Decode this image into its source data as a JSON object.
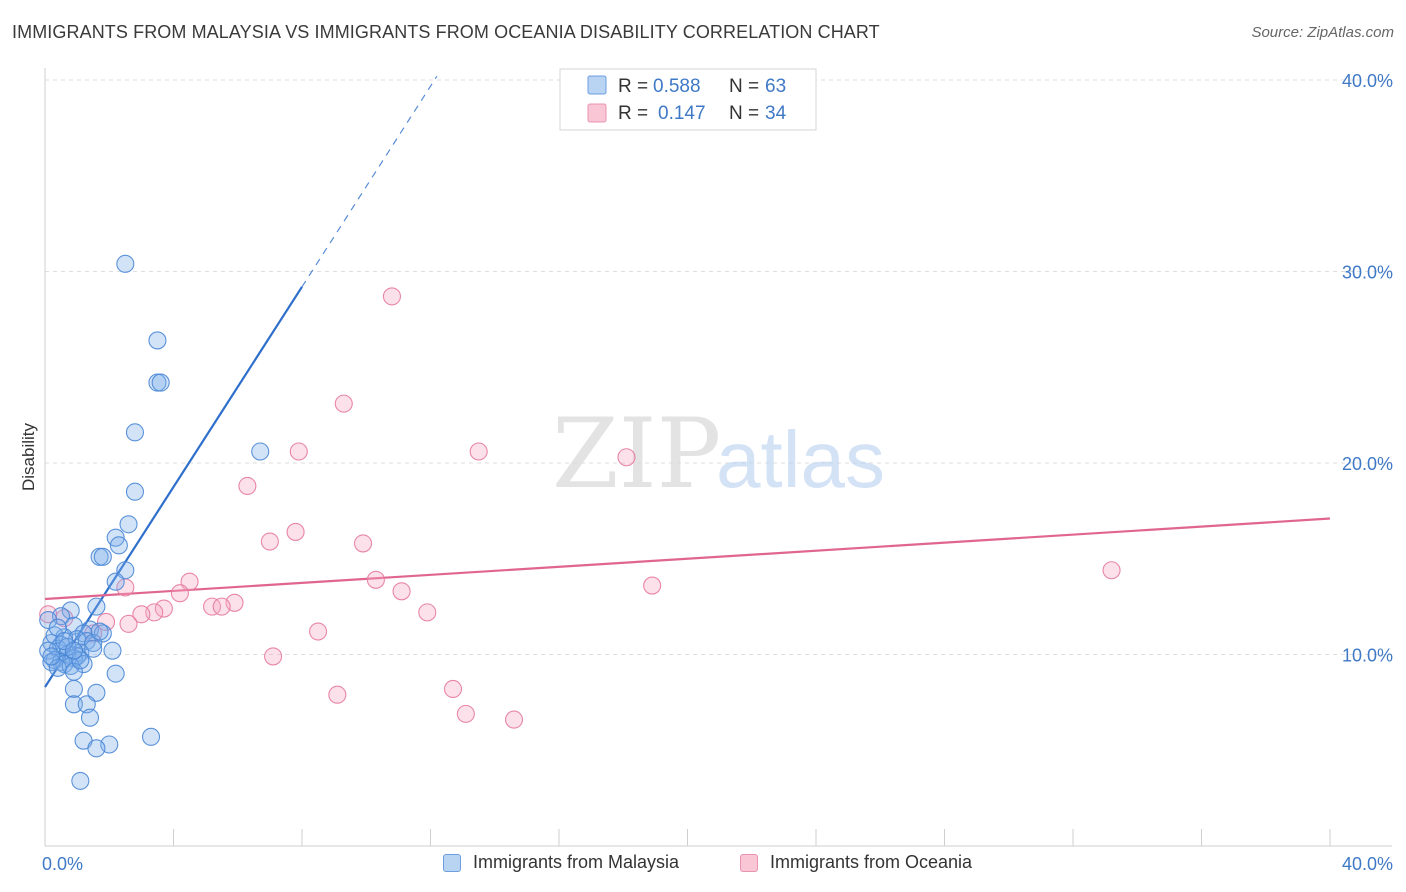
{
  "chart_data": {
    "type": "scatter",
    "title": "IMMIGRANTS FROM MALAYSIA VS IMMIGRANTS FROM OCEANIA DISABILITY CORRELATION CHART",
    "source": "Source: ZipAtlas.com",
    "ylabel": "Disability",
    "xlim": [
      0,
      40
    ],
    "ylim": [
      0,
      40
    ],
    "y_ticks": [
      {
        "value": 10,
        "label": "10.0%"
      },
      {
        "value": 20,
        "label": "20.0%"
      },
      {
        "value": 30,
        "label": "30.0%"
      },
      {
        "value": 40,
        "label": "40.0%"
      }
    ],
    "x_ticks": [
      {
        "value": 0,
        "label": "0.0%"
      },
      {
        "value": 40,
        "label": "40.0%"
      }
    ],
    "legend_stats": [
      {
        "r_label": "R =",
        "r_value": "0.588",
        "n_label": "N =",
        "n_value": "63"
      },
      {
        "r_label": "R =",
        "r_value": "0.147",
        "n_label": "N =",
        "n_value": "34"
      }
    ],
    "watermark": {
      "part1": "ZIP",
      "part2": "atlas"
    },
    "series": [
      {
        "name": "Immigrants from Malaysia",
        "color": "#7fb0ea",
        "stroke": "#4a87d6",
        "trend_color": "#2e6fcc",
        "trend": {
          "x0": 0.0,
          "y0": 8.3,
          "x1": 8.0,
          "y1": 29.2,
          "dash_to_x": 12.2,
          "dash_to_y": 40.2
        },
        "points": [
          [
            2.5,
            30.4
          ],
          [
            3.5,
            26.4
          ],
          [
            3.5,
            24.2
          ],
          [
            3.6,
            24.2
          ],
          [
            2.8,
            21.6
          ],
          [
            6.7,
            20.6
          ],
          [
            2.8,
            18.5
          ],
          [
            2.6,
            16.8
          ],
          [
            2.2,
            16.1
          ],
          [
            2.3,
            15.7
          ],
          [
            1.7,
            15.1
          ],
          [
            1.8,
            15.1
          ],
          [
            2.5,
            14.4
          ],
          [
            2.2,
            13.8
          ],
          [
            1.6,
            12.5
          ],
          [
            0.8,
            12.3
          ],
          [
            0.5,
            12.0
          ],
          [
            0.1,
            11.8
          ],
          [
            0.9,
            11.5
          ],
          [
            1.4,
            11.3
          ],
          [
            1.2,
            11.1
          ],
          [
            1.8,
            11.1
          ],
          [
            0.6,
            10.9
          ],
          [
            1.0,
            10.8
          ],
          [
            1.3,
            10.7
          ],
          [
            1.5,
            10.6
          ],
          [
            0.2,
            10.6
          ],
          [
            0.5,
            10.5
          ],
          [
            0.4,
            10.3
          ],
          [
            0.1,
            10.2
          ],
          [
            1.1,
            10.1
          ],
          [
            2.1,
            10.2
          ],
          [
            0.7,
            10.0
          ],
          [
            1.0,
            9.9
          ],
          [
            0.9,
            9.8
          ],
          [
            0.3,
            9.7
          ],
          [
            0.5,
            9.6
          ],
          [
            0.2,
            9.6
          ],
          [
            1.2,
            9.5
          ],
          [
            0.6,
            9.5
          ],
          [
            0.8,
            9.4
          ],
          [
            0.4,
            9.3
          ],
          [
            0.9,
            9.1
          ],
          [
            2.2,
            9.0
          ],
          [
            0.9,
            8.2
          ],
          [
            1.6,
            8.0
          ],
          [
            0.9,
            7.4
          ],
          [
            1.3,
            7.4
          ],
          [
            1.4,
            6.7
          ],
          [
            3.3,
            5.7
          ],
          [
            1.2,
            5.5
          ],
          [
            2.0,
            5.3
          ],
          [
            1.6,
            5.1
          ],
          [
            1.1,
            3.4
          ],
          [
            0.3,
            11.0
          ],
          [
            0.7,
            10.4
          ],
          [
            1.5,
            10.3
          ],
          [
            0.2,
            9.9
          ],
          [
            1.7,
            11.2
          ],
          [
            0.4,
            11.4
          ],
          [
            1.1,
            9.7
          ],
          [
            0.6,
            10.7
          ],
          [
            0.9,
            10.2
          ]
        ]
      },
      {
        "name": "Immigrants from Oceania",
        "color": "#f5a9c2",
        "stroke": "#e57aa0",
        "trend_color": "#e06590",
        "trend": {
          "x0": 0.0,
          "y0": 12.9,
          "x1": 40.0,
          "y1": 17.1
        },
        "points": [
          [
            10.8,
            28.7
          ],
          [
            9.3,
            23.1
          ],
          [
            7.9,
            20.6
          ],
          [
            13.5,
            20.6
          ],
          [
            18.1,
            20.3
          ],
          [
            6.3,
            18.8
          ],
          [
            7.8,
            16.4
          ],
          [
            7.0,
            15.9
          ],
          [
            9.9,
            15.8
          ],
          [
            33.2,
            14.4
          ],
          [
            10.3,
            13.9
          ],
          [
            4.5,
            13.8
          ],
          [
            18.9,
            13.6
          ],
          [
            2.5,
            13.5
          ],
          [
            11.1,
            13.3
          ],
          [
            4.2,
            13.2
          ],
          [
            5.9,
            12.7
          ],
          [
            5.2,
            12.5
          ],
          [
            5.5,
            12.5
          ],
          [
            3.7,
            12.4
          ],
          [
            3.4,
            12.2
          ],
          [
            11.9,
            12.2
          ],
          [
            3.0,
            12.1
          ],
          [
            0.1,
            12.1
          ],
          [
            0.6,
            11.9
          ],
          [
            1.9,
            11.7
          ],
          [
            2.6,
            11.6
          ],
          [
            8.5,
            11.2
          ],
          [
            7.1,
            9.9
          ],
          [
            9.1,
            7.9
          ],
          [
            12.7,
            8.2
          ],
          [
            13.1,
            6.9
          ],
          [
            14.6,
            6.6
          ],
          [
            1.5,
            11.1
          ]
        ]
      }
    ]
  }
}
